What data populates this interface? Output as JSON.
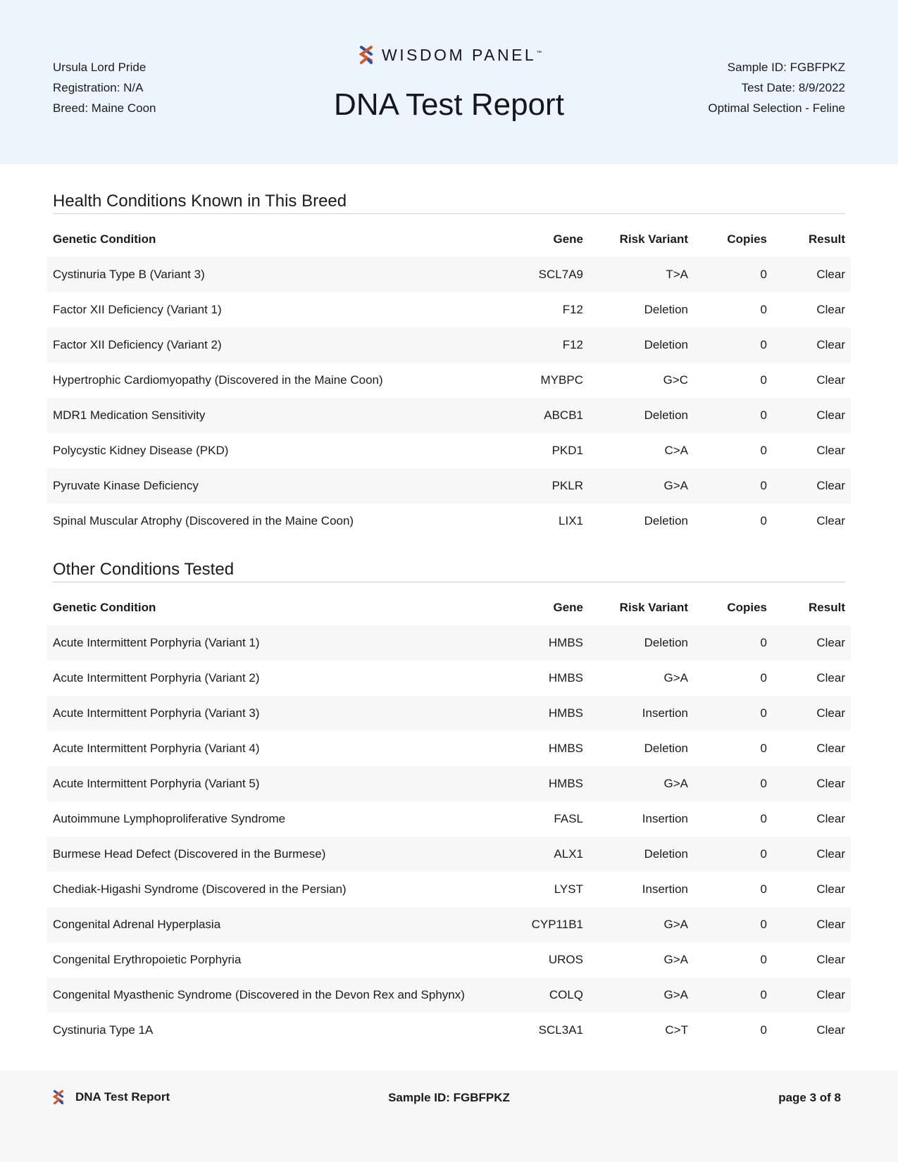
{
  "header": {
    "name": "Ursula Lord Pride",
    "registration": "Registration: N/A",
    "breed": "Breed: Maine Coon",
    "brand": "WISDOM PANEL",
    "tm": "™",
    "title": "DNA Test Report",
    "sample_id": "Sample ID: FGBFPKZ",
    "test_date": "Test Date: 8/9/2022",
    "product": "Optimal Selection - Feline"
  },
  "columns": [
    "Genetic Condition",
    "Gene",
    "Risk Variant",
    "Copies",
    "Result"
  ],
  "sections": [
    {
      "title": "Health Conditions Known in This Breed",
      "rows": [
        [
          "Cystinuria Type B (Variant 3)",
          "SCL7A9",
          "T>A",
          "0",
          "Clear"
        ],
        [
          "Factor XII Deficiency (Variant 1)",
          "F12",
          "Deletion",
          "0",
          "Clear"
        ],
        [
          "Factor XII Deficiency (Variant 2)",
          "F12",
          "Deletion",
          "0",
          "Clear"
        ],
        [
          "Hypertrophic Cardiomyopathy (Discovered in the Maine Coon)",
          "MYBPC",
          "G>C",
          "0",
          "Clear"
        ],
        [
          "MDR1 Medication Sensitivity",
          "ABCB1",
          "Deletion",
          "0",
          "Clear"
        ],
        [
          "Polycystic Kidney Disease (PKD)",
          "PKD1",
          "C>A",
          "0",
          "Clear"
        ],
        [
          "Pyruvate Kinase Deficiency",
          "PKLR",
          "G>A",
          "0",
          "Clear"
        ],
        [
          "Spinal Muscular Atrophy (Discovered in the Maine Coon)",
          "LIX1",
          "Deletion",
          "0",
          "Clear"
        ]
      ]
    },
    {
      "title": "Other Conditions Tested",
      "rows": [
        [
          "Acute Intermittent Porphyria (Variant 1)",
          "HMBS",
          "Deletion",
          "0",
          "Clear"
        ],
        [
          "Acute Intermittent Porphyria (Variant 2)",
          "HMBS",
          "G>A",
          "0",
          "Clear"
        ],
        [
          "Acute Intermittent Porphyria (Variant 3)",
          "HMBS",
          "Insertion",
          "0",
          "Clear"
        ],
        [
          "Acute Intermittent Porphyria (Variant 4)",
          "HMBS",
          "Deletion",
          "0",
          "Clear"
        ],
        [
          "Acute Intermittent Porphyria (Variant 5)",
          "HMBS",
          "G>A",
          "0",
          "Clear"
        ],
        [
          "Autoimmune Lymphoproliferative Syndrome",
          "FASL",
          "Insertion",
          "0",
          "Clear"
        ],
        [
          "Burmese Head Defect (Discovered in the Burmese)",
          "ALX1",
          "Deletion",
          "0",
          "Clear"
        ],
        [
          "Chediak-Higashi Syndrome (Discovered in the Persian)",
          "LYST",
          "Insertion",
          "0",
          "Clear"
        ],
        [
          "Congenital Adrenal Hyperplasia",
          "CYP11B1",
          "G>A",
          "0",
          "Clear"
        ],
        [
          "Congenital Erythropoietic Porphyria",
          "UROS",
          "G>A",
          "0",
          "Clear"
        ],
        [
          "Congenital Myasthenic Syndrome (Discovered in the Devon Rex and Sphynx)",
          "COLQ",
          "G>A",
          "0",
          "Clear"
        ],
        [
          "Cystinuria Type 1A",
          "SCL3A1",
          "C>T",
          "0",
          "Clear"
        ]
      ]
    }
  ],
  "footer": {
    "title": "DNA Test Report",
    "sample_id": "Sample ID: FGBFPKZ",
    "page": "page 3 of 8"
  },
  "colors": {
    "header_bg": "#ecf5fe",
    "logo_orange": "#d4572c",
    "logo_blue": "#2b4fa8"
  }
}
